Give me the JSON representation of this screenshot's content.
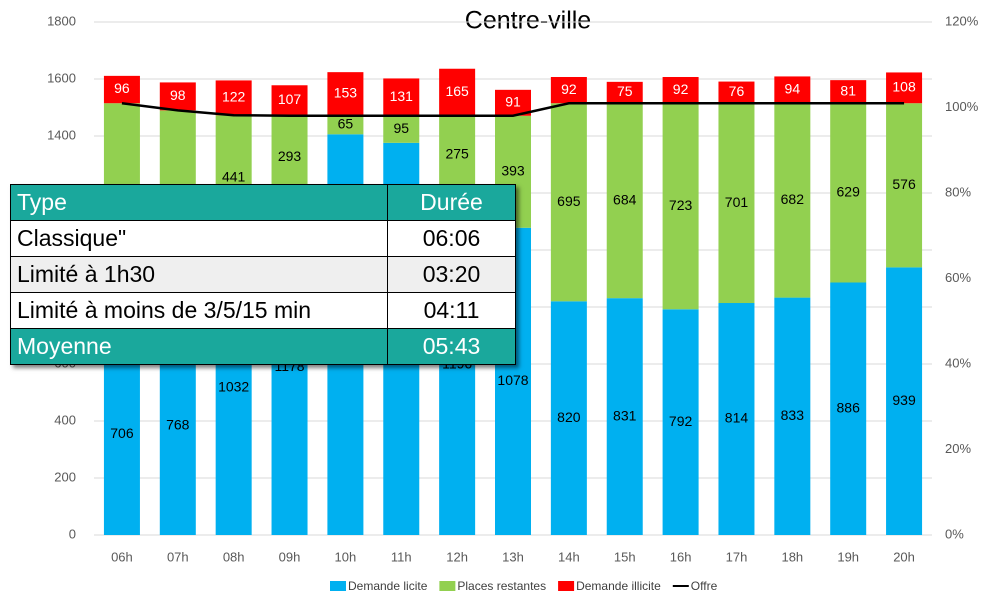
{
  "chart_data": {
    "type": "bar",
    "stacked": true,
    "title": "Centre-ville",
    "categories": [
      "06h",
      "07h",
      "08h",
      "09h",
      "10h",
      "11h",
      "12h",
      "13h",
      "14h",
      "15h",
      "16h",
      "17h",
      "18h",
      "19h",
      "20h"
    ],
    "series": [
      {
        "name": "Demande licite",
        "color": "#00b0f0",
        "values": [
          706,
          768,
          1032,
          1178,
          1406,
          1376,
          1196,
          1078,
          820,
          831,
          792,
          814,
          833,
          886,
          939
        ]
      },
      {
        "name": "Places restantes",
        "color": "#92d050",
        "values": [
          809,
          722,
          441,
          293,
          65,
          95,
          275,
          393,
          695,
          684,
          723,
          701,
          682,
          629,
          576
        ]
      },
      {
        "name": "Demande illicite",
        "color": "#ff0000",
        "values": [
          96,
          98,
          122,
          107,
          153,
          131,
          165,
          91,
          92,
          75,
          92,
          76,
          94,
          81,
          108
        ]
      },
      {
        "name": "Offre",
        "type": "line",
        "color": "#000000",
        "values": [
          1515,
          1490,
          1473,
          1471,
          1471,
          1471,
          1471,
          1471,
          1515,
          1515,
          1515,
          1515,
          1515,
          1515,
          1515
        ]
      }
    ],
    "ylim": [
      0,
      1800
    ],
    "yticks": [
      0,
      200,
      400,
      600,
      800,
      1000,
      1200,
      1400,
      1600,
      1800
    ],
    "y2lim": [
      0,
      120
    ],
    "y2ticks": [
      {
        "value": 0,
        "label": "0%"
      },
      {
        "value": 20,
        "label": "20%"
      },
      {
        "value": 40,
        "label": "40%"
      },
      {
        "value": 60,
        "label": "60%"
      },
      {
        "value": 80,
        "label": "80%"
      },
      {
        "value": 100,
        "label": "100%"
      },
      {
        "value": 120,
        "label": "120%"
      }
    ],
    "grid": true,
    "legend": "bottom"
  },
  "table": {
    "header": [
      "Type",
      "Durée"
    ],
    "rows": [
      [
        "Classique\"",
        "06:06"
      ],
      [
        "Limité à 1h30",
        "03:20"
      ],
      [
        "Limité à moins de 3/5/15 min",
        "04:11"
      ],
      [
        "Moyenne",
        "05:43"
      ]
    ]
  }
}
